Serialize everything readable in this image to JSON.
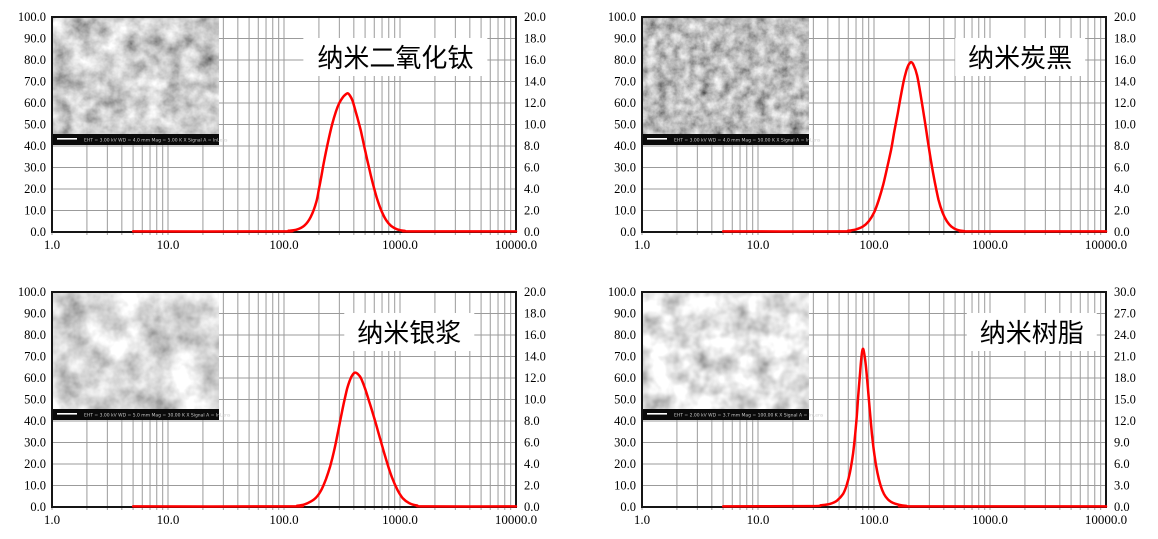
{
  "figure": {
    "description": "四种纳米材料粒度分布图"
  },
  "colors": {
    "curve": "#ff0000",
    "grid": "#9b9b9b",
    "frame": "#151515",
    "label": "#000000",
    "title_bg": "#ffffff",
    "sem_bar": "#0a0a0a"
  },
  "left_axis": {
    "range": [
      0,
      100
    ],
    "labels": [
      "0.0",
      "10.0",
      "20.0",
      "30.0",
      "40.0",
      "50.0",
      "60.0",
      "70.0",
      "80.0",
      "90.0",
      "100.0"
    ]
  },
  "x_axis": {
    "scale": "log",
    "range": [
      1,
      10000
    ],
    "labels": [
      "1.0",
      "10.0",
      "100.0",
      "1000.0",
      "10000.0"
    ]
  },
  "chart_data": [
    {
      "type": "line",
      "id": "nano-titanium-dioxide",
      "title": "纳米二氧化钛",
      "legend_position": "none",
      "grid": true,
      "right_axis": {
        "range": [
          0,
          20
        ],
        "labels": [
          "0.0",
          "2.0",
          "4.0",
          "6.0",
          "8.0",
          "10.0",
          "12.0",
          "14.0",
          "16.0",
          "18.0",
          "20.0"
        ]
      },
      "peak": {
        "x": 350,
        "y_left": 64.5,
        "y_right": 12.9
      },
      "series": [
        {
          "name": "size-distribution",
          "color": "#ff0000",
          "points": [
            [
              5,
              0.3
            ],
            [
              90,
              0.3
            ],
            [
              110,
              0.6
            ],
            [
              130,
              1.2
            ],
            [
              150,
              3
            ],
            [
              170,
              7
            ],
            [
              190,
              14
            ],
            [
              200,
              20
            ],
            [
              210,
              26
            ],
            [
              220,
              32
            ],
            [
              240,
              42
            ],
            [
              260,
              50
            ],
            [
              280,
              56
            ],
            [
              300,
              60
            ],
            [
              320,
              62.5
            ],
            [
              340,
              64
            ],
            [
              355,
              64.5
            ],
            [
              370,
              63.5
            ],
            [
              390,
              61
            ],
            [
              410,
              57
            ],
            [
              430,
              53
            ],
            [
              460,
              47
            ],
            [
              500,
              38
            ],
            [
              540,
              30
            ],
            [
              580,
              23
            ],
            [
              630,
              16
            ],
            [
              690,
              10
            ],
            [
              760,
              5.5
            ],
            [
              840,
              2.8
            ],
            [
              950,
              1.2
            ],
            [
              1100,
              0.5
            ],
            [
              1300,
              0.3
            ],
            [
              10000,
              0.3
            ]
          ]
        }
      ],
      "sem": {
        "info": "EHT = 3.00 kV    WD = 4.0 mm    Mag = 5.00 K X    Signal A = InLens"
      }
    },
    {
      "type": "line",
      "id": "nano-carbon-black",
      "title": "纳米炭黑",
      "legend_position": "none",
      "grid": true,
      "right_axis": {
        "range": [
          0,
          20
        ],
        "labels": [
          "0.0",
          "2.0",
          "4.0",
          "6.0",
          "8.0",
          "10.0",
          "12.0",
          "14.0",
          "16.0",
          "18.0",
          "20.0"
        ]
      },
      "peak": {
        "x": 205,
        "y_left": 79,
        "y_right": 15.8
      },
      "series": [
        {
          "name": "size-distribution",
          "color": "#ff0000",
          "points": [
            [
              5,
              0.3
            ],
            [
              50,
              0.3
            ],
            [
              60,
              0.6
            ],
            [
              70,
              1.2
            ],
            [
              80,
              2.5
            ],
            [
              90,
              5
            ],
            [
              100,
              9
            ],
            [
              110,
              15
            ],
            [
              120,
              22
            ],
            [
              130,
              30
            ],
            [
              140,
              38
            ],
            [
              150,
              47
            ],
            [
              160,
              55
            ],
            [
              170,
              63
            ],
            [
              180,
              70
            ],
            [
              190,
              75
            ],
            [
              200,
              78
            ],
            [
              210,
              79
            ],
            [
              220,
              77.5
            ],
            [
              235,
              73
            ],
            [
              250,
              65
            ],
            [
              270,
              54
            ],
            [
              290,
              43
            ],
            [
              310,
              33
            ],
            [
              335,
              23
            ],
            [
              360,
              15
            ],
            [
              390,
              9
            ],
            [
              425,
              5
            ],
            [
              465,
              2.5
            ],
            [
              520,
              1
            ],
            [
              600,
              0.4
            ],
            [
              700,
              0.3
            ],
            [
              10000,
              0.3
            ]
          ]
        }
      ],
      "sem": {
        "info": "EHT = 3.00 kV    WD = 4.0 mm    Mag = 50.00 K X    Signal A = InLens"
      }
    },
    {
      "type": "line",
      "id": "nano-silver-paste",
      "title": "纳米银浆",
      "legend_position": "none",
      "grid": true,
      "right_axis": {
        "range": [
          0,
          20
        ],
        "labels": [
          "0.0",
          "2.0",
          "4.0",
          "6.0",
          "8.0",
          "10.0",
          "12.0",
          "14.0",
          "16.0",
          "18.0",
          "20.0"
        ]
      },
      "peak": {
        "x": 410,
        "y_left": 62.5,
        "y_right": 12.5
      },
      "series": [
        {
          "name": "size-distribution",
          "color": "#ff0000",
          "points": [
            [
              5,
              0.3
            ],
            [
              110,
              0.3
            ],
            [
              130,
              0.6
            ],
            [
              150,
              1.2
            ],
            [
              170,
              2.5
            ],
            [
              190,
              4.5
            ],
            [
              210,
              8
            ],
            [
              230,
              13
            ],
            [
              250,
              19
            ],
            [
              270,
              26
            ],
            [
              290,
              34
            ],
            [
              310,
              42
            ],
            [
              330,
              49
            ],
            [
              350,
              55
            ],
            [
              370,
              59
            ],
            [
              390,
              61.5
            ],
            [
              410,
              62.5
            ],
            [
              430,
              62
            ],
            [
              460,
              60
            ],
            [
              500,
              55
            ],
            [
              550,
              48
            ],
            [
              610,
              40
            ],
            [
              680,
              31
            ],
            [
              760,
              22
            ],
            [
              850,
              14
            ],
            [
              950,
              8
            ],
            [
              1060,
              4
            ],
            [
              1200,
              1.8
            ],
            [
              1400,
              0.7
            ],
            [
              1700,
              0.3
            ],
            [
              10000,
              0.3
            ]
          ]
        }
      ],
      "sem": {
        "info": "EHT = 3.00 kV    WD = 5.0 mm    Mag = 30.00 K X    Signal A = InLens"
      }
    },
    {
      "type": "line",
      "id": "nano-resin",
      "title": "纳米树脂",
      "legend_position": "none",
      "grid": true,
      "right_axis": {
        "range": [
          0,
          30
        ],
        "labels": [
          "0.0",
          "3.0",
          "6.0",
          "9.0",
          "12.0",
          "15.0",
          "18.0",
          "21.0",
          "24.0",
          "27.0",
          "30.0"
        ]
      },
      "peak": {
        "x": 79,
        "y_left": 73.5,
        "y_right": 22.1
      },
      "series": [
        {
          "name": "size-distribution",
          "color": "#ff0000",
          "points": [
            [
              5,
              0.3
            ],
            [
              28,
              0.4
            ],
            [
              35,
              0.8
            ],
            [
              42,
              1.5
            ],
            [
              48,
              3
            ],
            [
              54,
              6
            ],
            [
              58,
              10
            ],
            [
              62,
              16
            ],
            [
              66,
              25
            ],
            [
              70,
              38
            ],
            [
              73,
              51
            ],
            [
              76,
              63
            ],
            [
              78,
              70
            ],
            [
              80,
              73.5
            ],
            [
              82,
              72
            ],
            [
              85,
              66
            ],
            [
              88,
              57
            ],
            [
              92,
              45
            ],
            [
              96,
              34
            ],
            [
              101,
              24
            ],
            [
              107,
              16
            ],
            [
              114,
              10
            ],
            [
              122,
              6
            ],
            [
              132,
              3.5
            ],
            [
              145,
              2
            ],
            [
              165,
              1
            ],
            [
              190,
              0.5
            ],
            [
              230,
              0.3
            ],
            [
              10000,
              0.3
            ]
          ]
        }
      ],
      "sem": {
        "info": "EHT = 2.00 kV    WD = 3.7 mm    Mag = 100.00 K X    Signal A = InLens"
      }
    }
  ]
}
